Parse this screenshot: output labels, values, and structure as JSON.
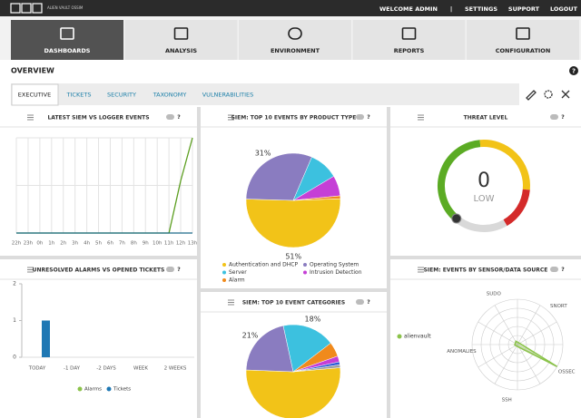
{
  "header": {
    "logo": "ALIEN VAULT OSSIM",
    "links": [
      "WELCOME ADMIN",
      "|",
      "SETTINGS",
      "SUPPORT",
      "LOGOUT"
    ]
  },
  "nav": {
    "items": [
      "DASHBOARDS",
      "ANALYSIS",
      "ENVIRONMENT",
      "REPORTS",
      "CONFIGURATION"
    ],
    "active": 0
  },
  "page_title": "OVERVIEW",
  "help": "?",
  "tabs": {
    "items": [
      "EXECUTIVE",
      "TICKETS",
      "SECURITY",
      "TAXONOMY",
      "VULNERABILITIES"
    ],
    "active": 0
  },
  "chart_data": [
    {
      "type": "line",
      "title": "LATEST SIEM VS LOGGER EVENTS",
      "categories": [
        "22h",
        "23h",
        "0h",
        "1h",
        "2h",
        "3h",
        "4h",
        "5h",
        "6h",
        "7h",
        "8h",
        "9h",
        "10h",
        "11h",
        "12h",
        "13h"
      ],
      "series": [
        {
          "color": "#5b9e1f",
          "values": [
            0,
            0,
            0,
            0,
            0,
            0,
            0,
            0,
            0,
            0,
            0,
            0,
            0,
            0,
            55,
            100
          ]
        },
        {
          "color": "#1d6b8a",
          "values": [
            0,
            0,
            0,
            0,
            0,
            0,
            0,
            0,
            0,
            0,
            0,
            0,
            0,
            0,
            0,
            0
          ]
        }
      ],
      "ylim": [
        0,
        100
      ],
      "grid": true
    },
    {
      "type": "pie",
      "title": "SIEM: TOP 10 EVENTS BY PRODUCT TYPE",
      "categories": [
        "Authentication and DHCP",
        "Operating System",
        "Server",
        "Intrusion Detection",
        "Alarm"
      ],
      "values": [
        51,
        31,
        10,
        7,
        1
      ],
      "value_labels": [
        "51%",
        "31%",
        null,
        null,
        null
      ],
      "colors": [
        "#f2c318",
        "#8a7cc0",
        "#3cc1df",
        "#c53fd6",
        "#f08a1c"
      ]
    },
    {
      "type": "gauge",
      "title": "THREAT LEVEL",
      "value": 0,
      "label": "LOW",
      "lim": [
        0,
        10
      ]
    },
    {
      "type": "bar",
      "title": "UNRESOLVED ALARMS VS OPENED TICKETS",
      "categories": [
        "TODAY",
        "-1 DAY",
        "-2 DAYS",
        "WEEK",
        "2 WEEKS"
      ],
      "series": [
        {
          "name": "Alarms",
          "color": "#8bc34a",
          "values": [
            0,
            0,
            0,
            0,
            0
          ]
        },
        {
          "name": "Tickets",
          "color": "#1f78b4",
          "values": [
            1,
            0,
            0,
            0,
            0
          ]
        }
      ],
      "ylim": [
        0,
        2
      ],
      "yticks": [
        0,
        1,
        2
      ]
    },
    {
      "type": "pie",
      "title": "SIEM: TOP 10 EVENT CATEGORIES",
      "values": [
        52,
        21,
        18,
        5,
        2,
        1,
        1
      ],
      "value_labels": [
        null,
        "21%",
        "18%",
        null,
        null,
        null,
        null
      ],
      "colors": [
        "#f2c318",
        "#8a7cc0",
        "#3cc1df",
        "#f08a1c",
        "#c53fd6",
        "#2a5bd7",
        "#9e9e9e"
      ]
    },
    {
      "type": "radar",
      "title": "SIEM: EVENTS BY SENSOR/DATA SOURCE",
      "categories": [
        "SUDO",
        "SNORT",
        "OSSEC",
        "SSH",
        "ANOMALIES"
      ],
      "series": [
        {
          "name": "alienvault",
          "color": "#8bc34a",
          "values": [
            8,
            5,
            100,
            4,
            6
          ]
        }
      ],
      "rlim": [
        0,
        100
      ]
    }
  ]
}
